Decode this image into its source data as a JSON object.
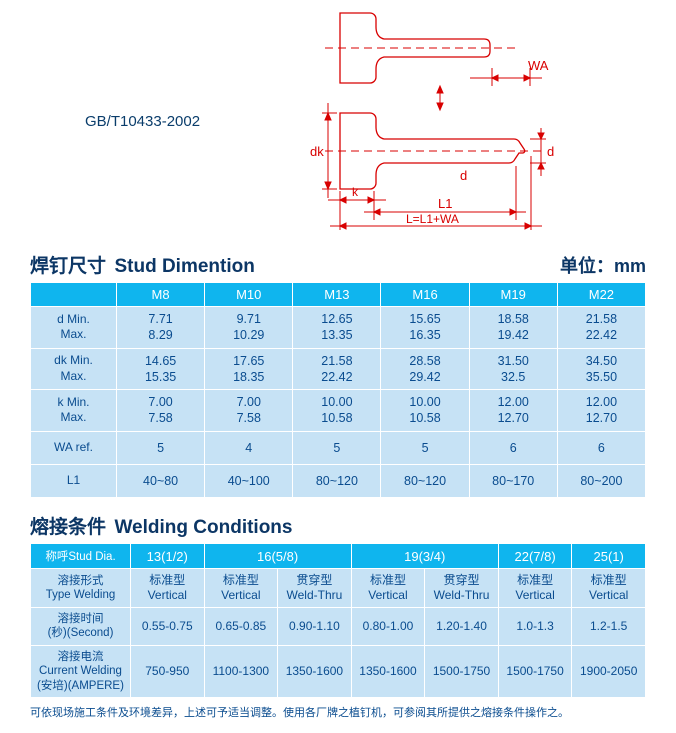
{
  "spec": "GB/T10433-2002",
  "diagram": {
    "labels": {
      "WA": "WA",
      "dk": "dk",
      "k": "k",
      "d": "d",
      "d2": "d",
      "L1": "L1",
      "LLine": "L=L1+WA"
    },
    "stroke": "#d80000",
    "dash": "6,4",
    "dot": "2,3"
  },
  "section1": {
    "title_cn": "焊钉尺寸",
    "title_en": "Stud Dimention",
    "unit": "单位：mm",
    "header": [
      "",
      "M8",
      "M10",
      "M13",
      "M16",
      "M19",
      "M22"
    ],
    "rows": [
      {
        "label_min": "d Min.",
        "label_max": "Max.",
        "vals": [
          [
            "7.71",
            "8.29"
          ],
          [
            "9.71",
            "10.29"
          ],
          [
            "12.65",
            "13.35"
          ],
          [
            "15.65",
            "16.35"
          ],
          [
            "18.58",
            "19.42"
          ],
          [
            "21.58",
            "22.42"
          ]
        ]
      },
      {
        "label_min": "dk Min.",
        "label_max": "Max.",
        "vals": [
          [
            "14.65",
            "15.35"
          ],
          [
            "17.65",
            "18.35"
          ],
          [
            "21.58",
            "22.42"
          ],
          [
            "28.58",
            "29.42"
          ],
          [
            "31.50",
            "32.5"
          ],
          [
            "34.50",
            "35.50"
          ]
        ]
      },
      {
        "label_min": "k Min.",
        "label_max": "Max.",
        "vals": [
          [
            "7.00",
            "7.58"
          ],
          [
            "7.00",
            "7.58"
          ],
          [
            "10.00",
            "10.58"
          ],
          [
            "10.00",
            "10.58"
          ],
          [
            "12.00",
            "12.70"
          ],
          [
            "12.00",
            "12.70"
          ]
        ]
      },
      {
        "label": "WA ref.",
        "single": true,
        "vals": [
          "5",
          "4",
          "5",
          "5",
          "6",
          "6"
        ]
      },
      {
        "label": "L1",
        "single": true,
        "vals": [
          "40~80",
          "40~100",
          "80~120",
          "80~120",
          "80~170",
          "80~200"
        ]
      }
    ]
  },
  "section2": {
    "title_cn": "熔接条件",
    "title_en": "Welding Conditions",
    "header_label": "称呼Stud Dia.",
    "header": [
      "13(1/2)",
      "16(5/8)",
      "",
      "19(3/4)",
      "",
      "22(7/8)",
      "25(1)"
    ],
    "header_spans": [
      {
        "text": "13(1/2)",
        "span": 1
      },
      {
        "text": "16(5/8)",
        "span": 2
      },
      {
        "text": "19(3/4)",
        "span": 2
      },
      {
        "text": "22(7/8)",
        "span": 1
      },
      {
        "text": "25(1)",
        "span": 1
      }
    ],
    "rows": [
      {
        "cn": "溶接形式",
        "en": "Type Welding",
        "vals": [
          [
            "标准型",
            "Vertical"
          ],
          [
            "标准型",
            "Vertical"
          ],
          [
            "贯穿型",
            "Weld-Thru"
          ],
          [
            "标准型",
            "Vertical"
          ],
          [
            "贯穿型",
            "Weld-Thru"
          ],
          [
            "标准型",
            "Vertical"
          ],
          [
            "标准型",
            "Vertical"
          ]
        ]
      },
      {
        "cn": "溶接时间",
        "en": "(秒)(Second)",
        "vals": [
          "0.55-0.75",
          "0.65-0.85",
          "0.90-1.10",
          "0.80-1.00",
          "1.20-1.40",
          "1.0-1.3",
          "1.2-1.5"
        ],
        "single": true
      },
      {
        "cn": "溶接电流",
        "en": "Current Welding",
        "en2": "(安培)(AMPERE)",
        "vals": [
          "750-950",
          "1100-1300",
          "1350-1600",
          "1350-1600",
          "1500-1750",
          "1500-1750",
          "1900-2050"
        ],
        "single": true
      }
    ]
  },
  "footnote": "可依现场施工条件及环境差异，上述可予适当调整。使用各厂牌之植钉机，可参阅其所提供之熔接条件操作之。"
}
